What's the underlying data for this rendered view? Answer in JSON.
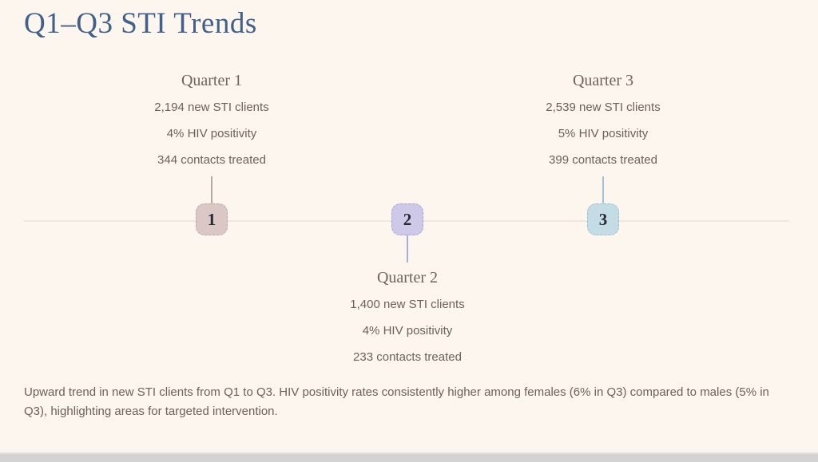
{
  "page": {
    "title": "Q1–Q3 STI Trends",
    "background_color": "#fdf6ef",
    "title_color": "#41608a"
  },
  "timeline": {
    "line_color": "#eee7e1"
  },
  "quarters": [
    {
      "label": "Quarter 1",
      "badge": "1",
      "stats": [
        "2,194 new STI clients",
        "4% HIV positivity",
        "344 contacts treated"
      ],
      "colors": {
        "fill": "#dcc7c7",
        "border": "#c2a7a7",
        "connector": "#b6a8a5"
      }
    },
    {
      "label": "Quarter 2",
      "badge": "2",
      "stats": [
        "1,400 new STI clients",
        "4% HIV positivity",
        "233 contacts treated"
      ],
      "colors": {
        "fill": "#cfc9e9",
        "border": "#a9a0d0",
        "connector": "#a8aeda"
      }
    },
    {
      "label": "Quarter 3",
      "badge": "3",
      "stats": [
        "2,539 new STI clients",
        "5% HIV positivity",
        "399 contacts treated"
      ],
      "colors": {
        "fill": "#c3dce6",
        "border": "#99bfcf",
        "connector": "#a2c2d8"
      }
    }
  ],
  "summary": "Upward trend in new STI clients from Q1 to Q3. HIV positivity rates consistently higher among females (6% in Q3) compared to males (5% in Q3), highlighting areas for targeted intervention."
}
